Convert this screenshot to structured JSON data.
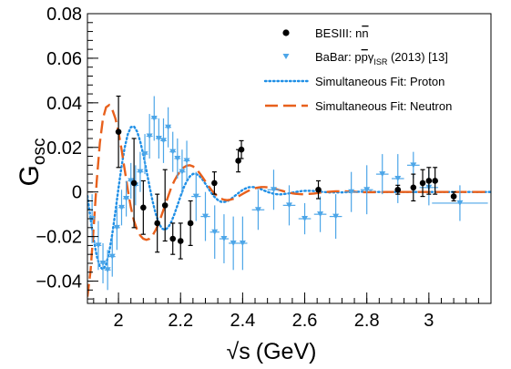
{
  "chart_data": {
    "type": "scatter",
    "xlabel": "√s (GeV)",
    "xlabel_parts": {
      "root": "√",
      "var": "s",
      "unit": "(GeV)"
    },
    "ylabel": "G_osc",
    "ylabel_parts": {
      "main": "G",
      "sub": "osc"
    },
    "xlim": [
      1.9,
      3.2
    ],
    "ylim": [
      -0.05,
      0.08
    ],
    "grid": false,
    "legend_position": "top-right",
    "x_ticks": [
      2,
      2.2,
      2.4,
      2.6,
      2.8,
      3
    ],
    "x_tick_labels": [
      "2",
      "2.2",
      "2.4",
      "2.6",
      "2.8",
      "3"
    ],
    "y_ticks": [
      -0.04,
      -0.02,
      0,
      0.02,
      0.04,
      0.06,
      0.08
    ],
    "y_tick_labels": [
      "−0.04",
      "−0.02",
      "0",
      "0.02",
      "0.04",
      "0.06",
      "0.08"
    ],
    "series": [
      {
        "name": "BESIII: nn̄",
        "legend_parts": {
          "main": "BESIII: n",
          "bar": "n"
        },
        "kind": "points",
        "marker": "circle",
        "color": "#000000",
        "points": [
          {
            "x": 2.0,
            "y": 0.027,
            "err": 0.016
          },
          {
            "x": 2.05,
            "y": 0.004,
            "err": 0.02
          },
          {
            "x": 2.08,
            "y": -0.007,
            "err": 0.012
          },
          {
            "x": 2.125,
            "y": -0.014,
            "err": 0.013
          },
          {
            "x": 2.15,
            "y": -0.006,
            "err": 0.016
          },
          {
            "x": 2.175,
            "y": -0.021,
            "err": 0.007
          },
          {
            "x": 2.2,
            "y": -0.022,
            "err": 0.008
          },
          {
            "x": 2.232,
            "y": -0.014,
            "err": 0.01
          },
          {
            "x": 2.309,
            "y": 0.004,
            "err": 0.005
          },
          {
            "x": 2.386,
            "y": 0.014,
            "err": 0.005
          },
          {
            "x": 2.396,
            "y": 0.019,
            "err": 0.004
          },
          {
            "x": 2.644,
            "y": 0.001,
            "err": 0.004
          },
          {
            "x": 2.9,
            "y": 0.001,
            "err": 0.002
          },
          {
            "x": 2.95,
            "y": 0.002,
            "err": 0.006
          },
          {
            "x": 2.98,
            "y": 0.004,
            "err": 0.006
          },
          {
            "x": 3.0,
            "y": 0.005,
            "err": 0.006
          },
          {
            "x": 3.02,
            "y": 0.005,
            "err": 0.006
          },
          {
            "x": 3.08,
            "y": -0.002,
            "err": 0.002
          }
        ]
      },
      {
        "name": "BaBar: pp̄γ_ISR (2013) [13]",
        "legend_parts": {
          "pre": "BaBar: p",
          "bar": "p",
          "gamma": "γ",
          "sub": "ISR",
          "post": " (2013) [13]"
        },
        "kind": "points",
        "marker": "triangle-down",
        "color": "#4da6e8",
        "points": [
          {
            "x": 1.915,
            "y": -0.012,
            "xerr": 0.01,
            "err": 0.011
          },
          {
            "x": 1.935,
            "y": -0.024,
            "xerr": 0.01,
            "err": 0.011
          },
          {
            "x": 1.95,
            "y": -0.032,
            "xerr": 0.01,
            "err": 0.009
          },
          {
            "x": 1.965,
            "y": -0.035,
            "xerr": 0.01,
            "err": 0.009
          },
          {
            "x": 1.98,
            "y": -0.029,
            "xerr": 0.01,
            "err": 0.009
          },
          {
            "x": 1.995,
            "y": -0.016,
            "xerr": 0.01,
            "err": 0.01
          },
          {
            "x": 2.01,
            "y": -0.007,
            "xerr": 0.01,
            "err": 0.008
          },
          {
            "x": 2.025,
            "y": -0.003,
            "xerr": 0.01,
            "err": 0.008
          },
          {
            "x": 2.04,
            "y": 0.005,
            "xerr": 0.01,
            "err": 0.008
          },
          {
            "x": 2.055,
            "y": 0.003,
            "xerr": 0.01,
            "err": 0.009
          },
          {
            "x": 2.07,
            "y": 0.009,
            "xerr": 0.01,
            "err": 0.009
          },
          {
            "x": 2.085,
            "y": 0.017,
            "xerr": 0.01,
            "err": 0.009
          },
          {
            "x": 2.1,
            "y": 0.025,
            "xerr": 0.01,
            "err": 0.01
          },
          {
            "x": 2.115,
            "y": 0.033,
            "xerr": 0.01,
            "err": 0.01
          },
          {
            "x": 2.13,
            "y": 0.024,
            "xerr": 0.01,
            "err": 0.009
          },
          {
            "x": 2.145,
            "y": 0.023,
            "xerr": 0.01,
            "err": 0.01
          },
          {
            "x": 2.16,
            "y": 0.029,
            "xerr": 0.01,
            "err": 0.009
          },
          {
            "x": 2.175,
            "y": 0.018,
            "xerr": 0.01,
            "err": 0.009
          },
          {
            "x": 2.19,
            "y": 0.015,
            "xerr": 0.01,
            "err": 0.009
          },
          {
            "x": 2.205,
            "y": 0.009,
            "xerr": 0.01,
            "err": 0.01
          },
          {
            "x": 2.22,
            "y": 0.014,
            "xerr": 0.01,
            "err": 0.009
          },
          {
            "x": 2.25,
            "y": -0.002,
            "xerr": 0.015,
            "err": 0.011
          },
          {
            "x": 2.28,
            "y": -0.011,
            "xerr": 0.015,
            "err": 0.011
          },
          {
            "x": 2.31,
            "y": -0.018,
            "xerr": 0.015,
            "err": 0.012
          },
          {
            "x": 2.34,
            "y": -0.021,
            "xerr": 0.015,
            "err": 0.011
          },
          {
            "x": 2.37,
            "y": -0.023,
            "xerr": 0.015,
            "err": 0.012
          },
          {
            "x": 2.4,
            "y": -0.023,
            "xerr": 0.015,
            "err": 0.012
          },
          {
            "x": 2.45,
            "y": -0.008,
            "xerr": 0.02,
            "err": 0.009
          },
          {
            "x": 2.5,
            "y": 0.001,
            "xerr": 0.02,
            "err": 0.009
          },
          {
            "x": 2.55,
            "y": -0.006,
            "xerr": 0.02,
            "err": 0.009
          },
          {
            "x": 2.6,
            "y": -0.012,
            "xerr": 0.02,
            "err": 0.007
          },
          {
            "x": 2.65,
            "y": -0.01,
            "xerr": 0.02,
            "err": 0.008
          },
          {
            "x": 2.7,
            "y": -0.011,
            "xerr": 0.02,
            "err": 0.01
          },
          {
            "x": 2.75,
            "y": 0.0,
            "xerr": 0.02,
            "err": 0.009
          },
          {
            "x": 2.8,
            "y": 0.001,
            "xerr": 0.02,
            "err": 0.011
          },
          {
            "x": 2.85,
            "y": 0.008,
            "xerr": 0.02,
            "err": 0.009
          },
          {
            "x": 2.9,
            "y": 0.006,
            "xerr": 0.02,
            "err": 0.011
          },
          {
            "x": 2.95,
            "y": 0.012,
            "xerr": 0.02,
            "err": 0.006
          },
          {
            "x": 3.0,
            "y": 0.002,
            "xerr": 0.03,
            "err": 0.008
          },
          {
            "x": 3.1,
            "y": -0.005,
            "xerr": 0.09,
            "err": 0.008
          }
        ]
      },
      {
        "name": "Simultaneous Fit: Proton",
        "kind": "line",
        "dash": "dotted",
        "color": "#1f8fe6",
        "x": [
          1.9,
          1.91,
          1.92,
          1.93,
          1.94,
          1.95,
          1.96,
          1.97,
          1.98,
          1.99,
          2.0,
          2.01,
          2.02,
          2.03,
          2.04,
          2.05,
          2.06,
          2.07,
          2.08,
          2.09,
          2.1,
          2.11,
          2.12,
          2.13,
          2.14,
          2.15,
          2.16,
          2.17,
          2.18,
          2.19,
          2.2,
          2.21,
          2.22,
          2.23,
          2.24,
          2.25,
          2.26,
          2.27,
          2.28,
          2.29,
          2.3,
          2.31,
          2.32,
          2.33,
          2.34,
          2.35,
          2.36,
          2.37,
          2.38,
          2.39,
          2.4,
          2.41,
          2.42,
          2.43,
          2.44,
          2.45,
          2.46,
          2.47,
          2.48,
          2.49,
          2.5,
          2.51,
          2.52,
          2.53,
          2.54,
          2.55,
          2.56,
          2.57,
          2.58,
          2.59,
          2.6,
          2.61,
          2.62,
          2.63,
          2.64,
          2.65,
          2.66,
          2.67,
          2.68,
          2.69,
          2.7,
          2.71,
          2.72,
          2.73,
          2.74,
          2.75,
          2.76,
          2.77,
          2.78,
          2.79,
          2.8,
          2.81,
          2.82,
          2.83,
          2.84,
          2.85,
          2.86,
          2.87,
          2.88,
          2.89,
          2.9,
          2.91,
          2.92,
          2.93,
          2.94,
          2.95,
          2.96,
          2.97,
          2.98,
          2.99,
          3.0,
          3.01,
          3.02,
          3.03,
          3.04,
          3.05,
          3.06,
          3.07,
          3.08,
          3.09,
          3.1,
          3.11,
          3.12,
          3.13,
          3.14,
          3.15,
          3.16,
          3.17,
          3.18,
          3.19,
          3.2
        ],
        "y": [
          -0.0018,
          -0.0118,
          -0.0212,
          -0.0288,
          -0.0335,
          -0.0348,
          -0.0326,
          -0.027,
          -0.0189,
          -0.0089,
          0.0017,
          0.0116,
          0.0199,
          0.0259,
          0.0291,
          0.0294,
          0.0271,
          0.0227,
          0.0167,
          0.0097,
          0.0025,
          -0.0042,
          -0.0098,
          -0.014,
          -0.0164,
          -0.017,
          -0.0159,
          -0.0135,
          -0.01,
          -0.006,
          -0.0019,
          0.0019,
          0.0049,
          0.007,
          0.0081,
          0.0081,
          0.0073,
          0.0057,
          0.0037,
          0.0015,
          -0.0006,
          -0.0023,
          -0.0036,
          -0.0044,
          -0.0045,
          -0.0042,
          -0.0034,
          -0.0023,
          -0.0012,
          -0.0001,
          0.0009,
          0.0016,
          0.0021,
          0.0022,
          0.0021,
          0.0017,
          0.0012,
          0.0006,
          0.0,
          -0.0004,
          -0.0008,
          -0.001,
          -0.0011,
          -0.001,
          -0.0008,
          -0.0006,
          -0.0003,
          0.0,
          0.0002,
          0.0004,
          0.0005,
          0.0005,
          0.0005,
          0.0004,
          0.0003,
          0.0001,
          0.0,
          -0.0001,
          -0.0002,
          -0.0002,
          -0.0002,
          -0.0002,
          -0.0002,
          -0.0001,
          -0.0001,
          0.0,
          0.0001,
          0.0001,
          0.0001,
          0.0001,
          0.0001,
          0.0001,
          0.0001,
          0.0,
          0.0,
          0.0,
          0.0,
          0.0,
          0.0,
          0.0,
          0.0,
          0.0,
          0.0,
          0.0,
          0.0,
          0.0,
          0.0,
          0.0,
          0.0,
          0.0,
          0.0,
          0.0,
          0.0,
          0.0,
          0.0,
          0.0,
          0.0,
          0.0,
          0.0,
          0.0,
          0.0,
          0.0,
          0.0,
          0.0,
          0.0,
          0.0,
          0.0,
          0.0,
          0.0,
          0.0,
          0.0
        ]
      },
      {
        "name": "Simultaneous Fit: Neutron",
        "kind": "line",
        "dash": "long-dash",
        "color": "#e8601c",
        "x": [
          1.9,
          1.91,
          1.92,
          1.93,
          1.94,
          1.95,
          1.96,
          1.97,
          1.98,
          1.99,
          2.0,
          2.01,
          2.02,
          2.03,
          2.04,
          2.05,
          2.06,
          2.07,
          2.08,
          2.09,
          2.1,
          2.11,
          2.12,
          2.13,
          2.14,
          2.15,
          2.16,
          2.17,
          2.18,
          2.19,
          2.2,
          2.21,
          2.22,
          2.23,
          2.24,
          2.25,
          2.26,
          2.27,
          2.28,
          2.29,
          2.3,
          2.31,
          2.32,
          2.33,
          2.34,
          2.35,
          2.36,
          2.37,
          2.38,
          2.39,
          2.4,
          2.41,
          2.42,
          2.43,
          2.44,
          2.45,
          2.46,
          2.47,
          2.48,
          2.49,
          2.5,
          2.51,
          2.52,
          2.53,
          2.54,
          2.55,
          2.56,
          2.57,
          2.58,
          2.59,
          2.6,
          2.61,
          2.62,
          2.63,
          2.64,
          2.65,
          2.66,
          2.67,
          2.68,
          2.69,
          2.7,
          2.71,
          2.72,
          2.73,
          2.74,
          2.75,
          2.76,
          2.77,
          2.78,
          2.79,
          2.8,
          2.81,
          2.82,
          2.83,
          2.84,
          2.85,
          2.86,
          2.87,
          2.88,
          2.89,
          2.9,
          2.91,
          2.92,
          2.93,
          2.94,
          2.95,
          2.96,
          2.97,
          2.98,
          2.99,
          3.0,
          3.01,
          3.02,
          3.03,
          3.04,
          3.05,
          3.06,
          3.07,
          3.08,
          3.09,
          3.1,
          3.11,
          3.12,
          3.13,
          3.14,
          3.15,
          3.16,
          3.17,
          3.18,
          3.19,
          3.2
        ],
        "y": [
          -0.047,
          -0.0355,
          -0.016,
          0.005,
          0.022,
          0.033,
          0.038,
          0.039,
          0.037,
          0.033,
          0.027,
          0.019,
          0.01,
          0.001,
          -0.007,
          -0.013,
          -0.017,
          -0.0195,
          -0.021,
          -0.0215,
          -0.021,
          -0.0195,
          -0.017,
          -0.014,
          -0.01,
          -0.006,
          -0.002,
          0.002,
          0.005,
          0.0075,
          0.0095,
          0.011,
          0.0118,
          0.012,
          0.0115,
          0.0103,
          0.0087,
          0.0068,
          0.0047,
          0.0027,
          0.0008,
          -0.0008,
          -0.0021,
          -0.003,
          -0.0035,
          -0.0037,
          -0.0035,
          -0.0031,
          -0.0025,
          -0.0017,
          -0.0009,
          -0.0001,
          0.0006,
          0.0012,
          0.0017,
          0.002,
          0.0022,
          0.0022,
          0.0021,
          0.0019,
          0.0016,
          0.0012,
          0.0008,
          0.0004,
          0.0,
          -0.0003,
          -0.0006,
          -0.0008,
          -0.0009,
          -0.001,
          -0.001,
          -0.0009,
          -0.0008,
          -0.0007,
          -0.0005,
          -0.0003,
          -0.0001,
          0.0,
          0.0001,
          0.0002,
          0.0003,
          0.0003,
          0.0003,
          0.0003,
          0.0002,
          0.0002,
          0.0001,
          0.0,
          0.0,
          -0.0001,
          -0.0001,
          -0.0001,
          -0.0001,
          -0.0001,
          -0.0001,
          -0.0001,
          0.0,
          0.0,
          0.0,
          0.0,
          0.0,
          0.0,
          0.0,
          0.0,
          0.0,
          0.0,
          0.0,
          0.0,
          0.0,
          0.0,
          0.0,
          0.0,
          0.0,
          0.0,
          0.0,
          0.0,
          0.0,
          0.0,
          0.0,
          0.0,
          0.0,
          0.0,
          0.0,
          0.0,
          0.0,
          0.0,
          0.0,
          0.0,
          0.0,
          0.0,
          0.0
        ]
      }
    ]
  }
}
